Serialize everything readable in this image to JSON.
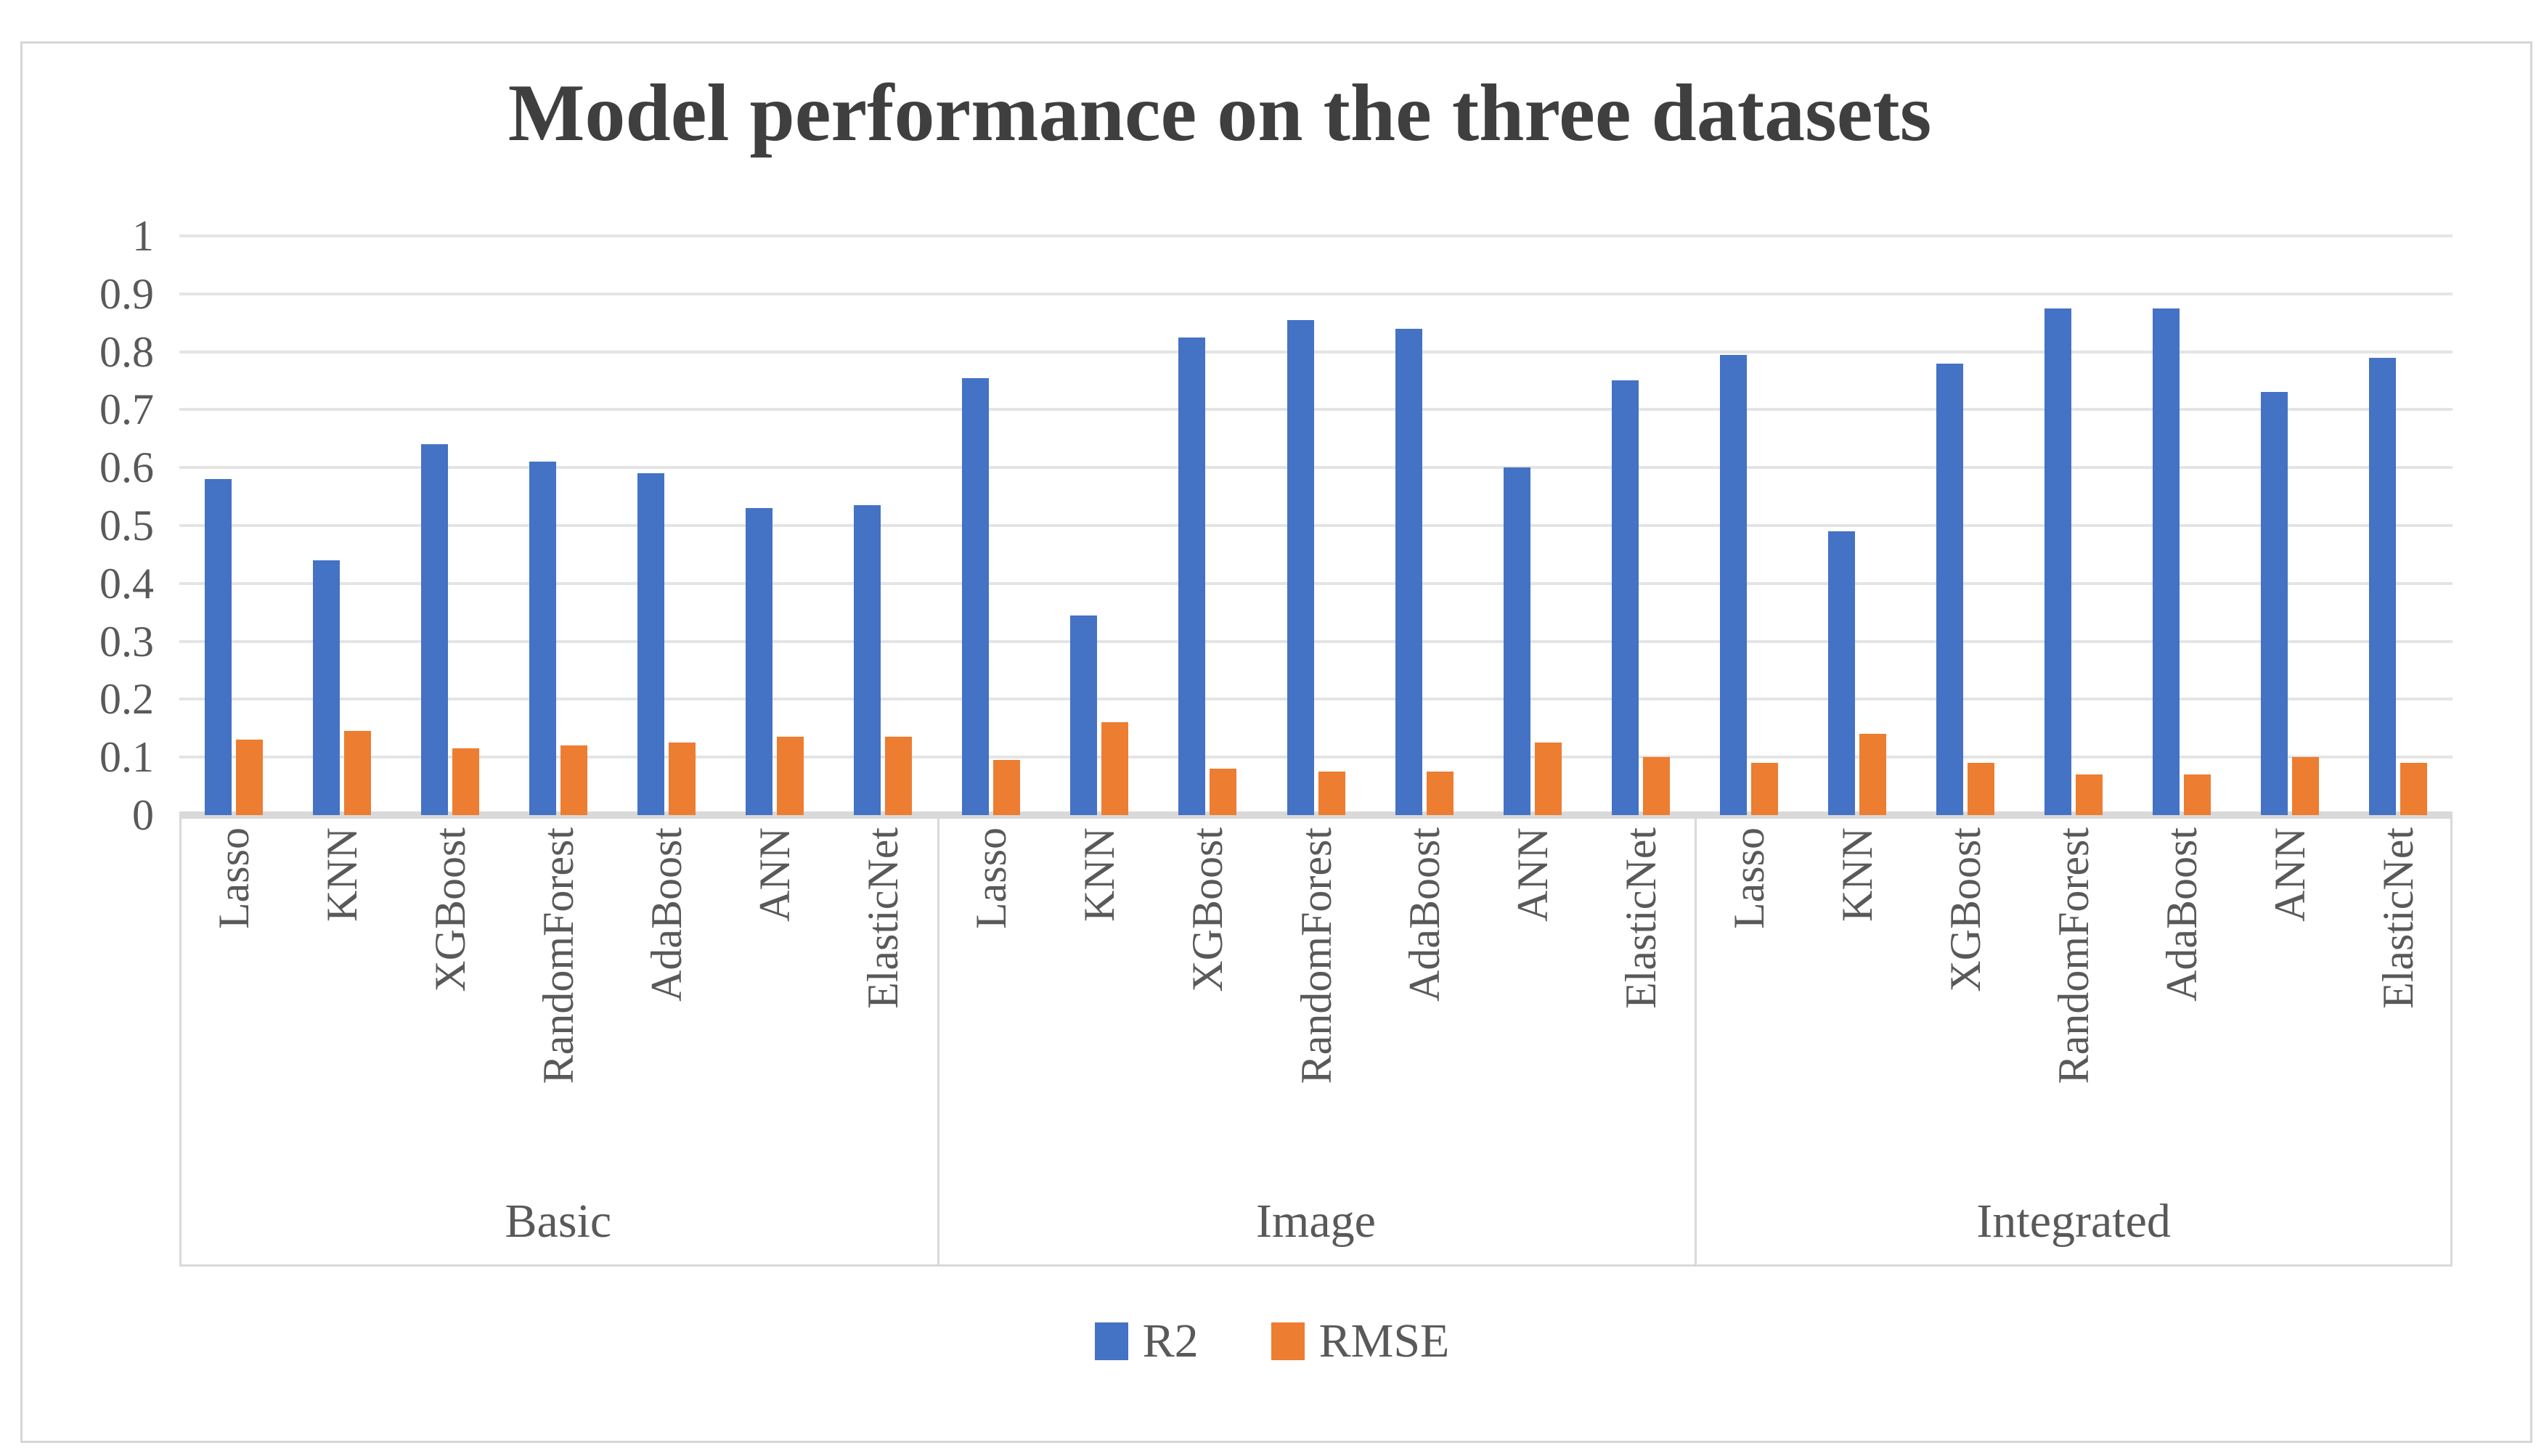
{
  "title": "Model performance on the three datasets",
  "legend": [
    {
      "label": "R2",
      "color": "#4472C4",
      "marker": "square-icon"
    },
    {
      "label": "RMSE",
      "color": "#ED7D31",
      "marker": "square-icon"
    }
  ],
  "colors": {
    "r2_blue": "#4472C4",
    "rmse_orange": "#ED7D31",
    "gridline": "#e4e4e4",
    "axis_line": "#d9d9d9",
    "text_gray": "#595959",
    "title_gray": "#3f3f3f",
    "frame_border": "#d6d6d6"
  },
  "chart_data": {
    "type": "bar",
    "title": "Model performance on the three datasets",
    "groups": [
      "Basic",
      "Image",
      "Integrated"
    ],
    "categories": [
      "Lasso",
      "KNN",
      "XGBoost",
      "RandomForest",
      "AdaBoost",
      "ANN",
      "ElasticNet"
    ],
    "series": [
      {
        "name": "R2",
        "color": "#4472C4",
        "values": [
          [
            0.58,
            0.44,
            0.64,
            0.61,
            0.59,
            0.53,
            0.535
          ],
          [
            0.755,
            0.345,
            0.825,
            0.855,
            0.84,
            0.6,
            0.75
          ],
          [
            0.795,
            0.49,
            0.78,
            0.875,
            0.875,
            0.73,
            0.79
          ]
        ]
      },
      {
        "name": "RMSE",
        "color": "#ED7D31",
        "values": [
          [
            0.13,
            0.145,
            0.115,
            0.12,
            0.125,
            0.135,
            0.135
          ],
          [
            0.095,
            0.16,
            0.08,
            0.075,
            0.075,
            0.125,
            0.1
          ],
          [
            0.09,
            0.14,
            0.09,
            0.07,
            0.07,
            0.1,
            0.09
          ]
        ]
      }
    ],
    "y_axis": {
      "min": 0,
      "max": 1,
      "step": 0.1,
      "tick_labels": [
        "1",
        "0.9",
        "0.8",
        "0.7",
        "0.6",
        "0.5",
        "0.4",
        "0.3",
        "0.2",
        "0.1",
        "0"
      ]
    },
    "grid": true,
    "legend_position": "bottom",
    "bar_orientation": "vertical"
  }
}
